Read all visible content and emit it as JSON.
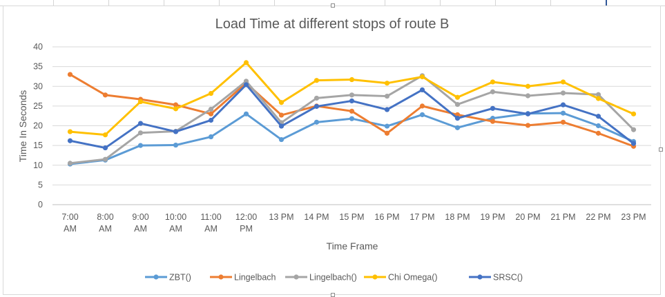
{
  "chart_data": {
    "type": "line",
    "title": "Load Time at different stops of route B",
    "xlabel": "Time Frame",
    "ylabel": "Time In Seconds",
    "ylim": [
      0,
      40
    ],
    "yticks": [
      0,
      5,
      10,
      15,
      20,
      25,
      30,
      35,
      40
    ],
    "grid": true,
    "legend_position": "bottom",
    "categories": [
      [
        "7:00",
        "AM"
      ],
      [
        "8:00",
        "AM"
      ],
      [
        "9:00",
        "AM"
      ],
      [
        "10:00",
        "AM"
      ],
      [
        "11:00",
        "AM"
      ],
      [
        "12:00",
        "PM"
      ],
      [
        "13 PM"
      ],
      [
        "14 PM"
      ],
      [
        "15 PM"
      ],
      [
        "16 PM"
      ],
      [
        "17 PM"
      ],
      [
        "18 PM"
      ],
      [
        "19 PM"
      ],
      [
        "20 PM"
      ],
      [
        "21 PM"
      ],
      [
        "22 PM"
      ],
      [
        "23 PM"
      ]
    ],
    "series": [
      {
        "name": "ZBT()",
        "color": "#5b9bd5",
        "values": [
          10.3,
          11.3,
          15.0,
          15.1,
          17.2,
          23.0,
          16.5,
          20.9,
          21.8,
          19.9,
          22.8,
          19.5,
          21.9,
          23.1,
          23.2,
          20.0,
          16.0
        ]
      },
      {
        "name": "Lingelbach",
        "color": "#ed7d31",
        "values": [
          33.0,
          27.8,
          26.7,
          25.3,
          23.0,
          30.8,
          22.7,
          25.0,
          23.7,
          18.1,
          25.0,
          22.8,
          21.1,
          20.1,
          20.9,
          18.1,
          14.8
        ]
      },
      {
        "name": "Lingelbach()",
        "color": "#a5a5a5",
        "values": [
          10.5,
          11.5,
          18.2,
          18.6,
          24.2,
          31.3,
          20.8,
          27.0,
          27.8,
          27.5,
          32.7,
          25.4,
          28.6,
          27.6,
          28.3,
          27.9,
          19.0
        ]
      },
      {
        "name": "Chi Omega()",
        "color": "#ffc000",
        "values": [
          18.5,
          17.7,
          26.1,
          24.3,
          28.2,
          36.0,
          25.9,
          31.5,
          31.7,
          30.8,
          32.4,
          27.2,
          31.1,
          30.0,
          31.1,
          26.9,
          23.0
        ]
      },
      {
        "name": "SRSC()",
        "color": "#4472c4",
        "values": [
          16.2,
          14.4,
          20.6,
          18.5,
          21.4,
          30.4,
          19.9,
          24.9,
          26.3,
          24.1,
          29.1,
          21.9,
          24.4,
          23.0,
          25.3,
          22.4,
          15.5
        ]
      }
    ]
  }
}
